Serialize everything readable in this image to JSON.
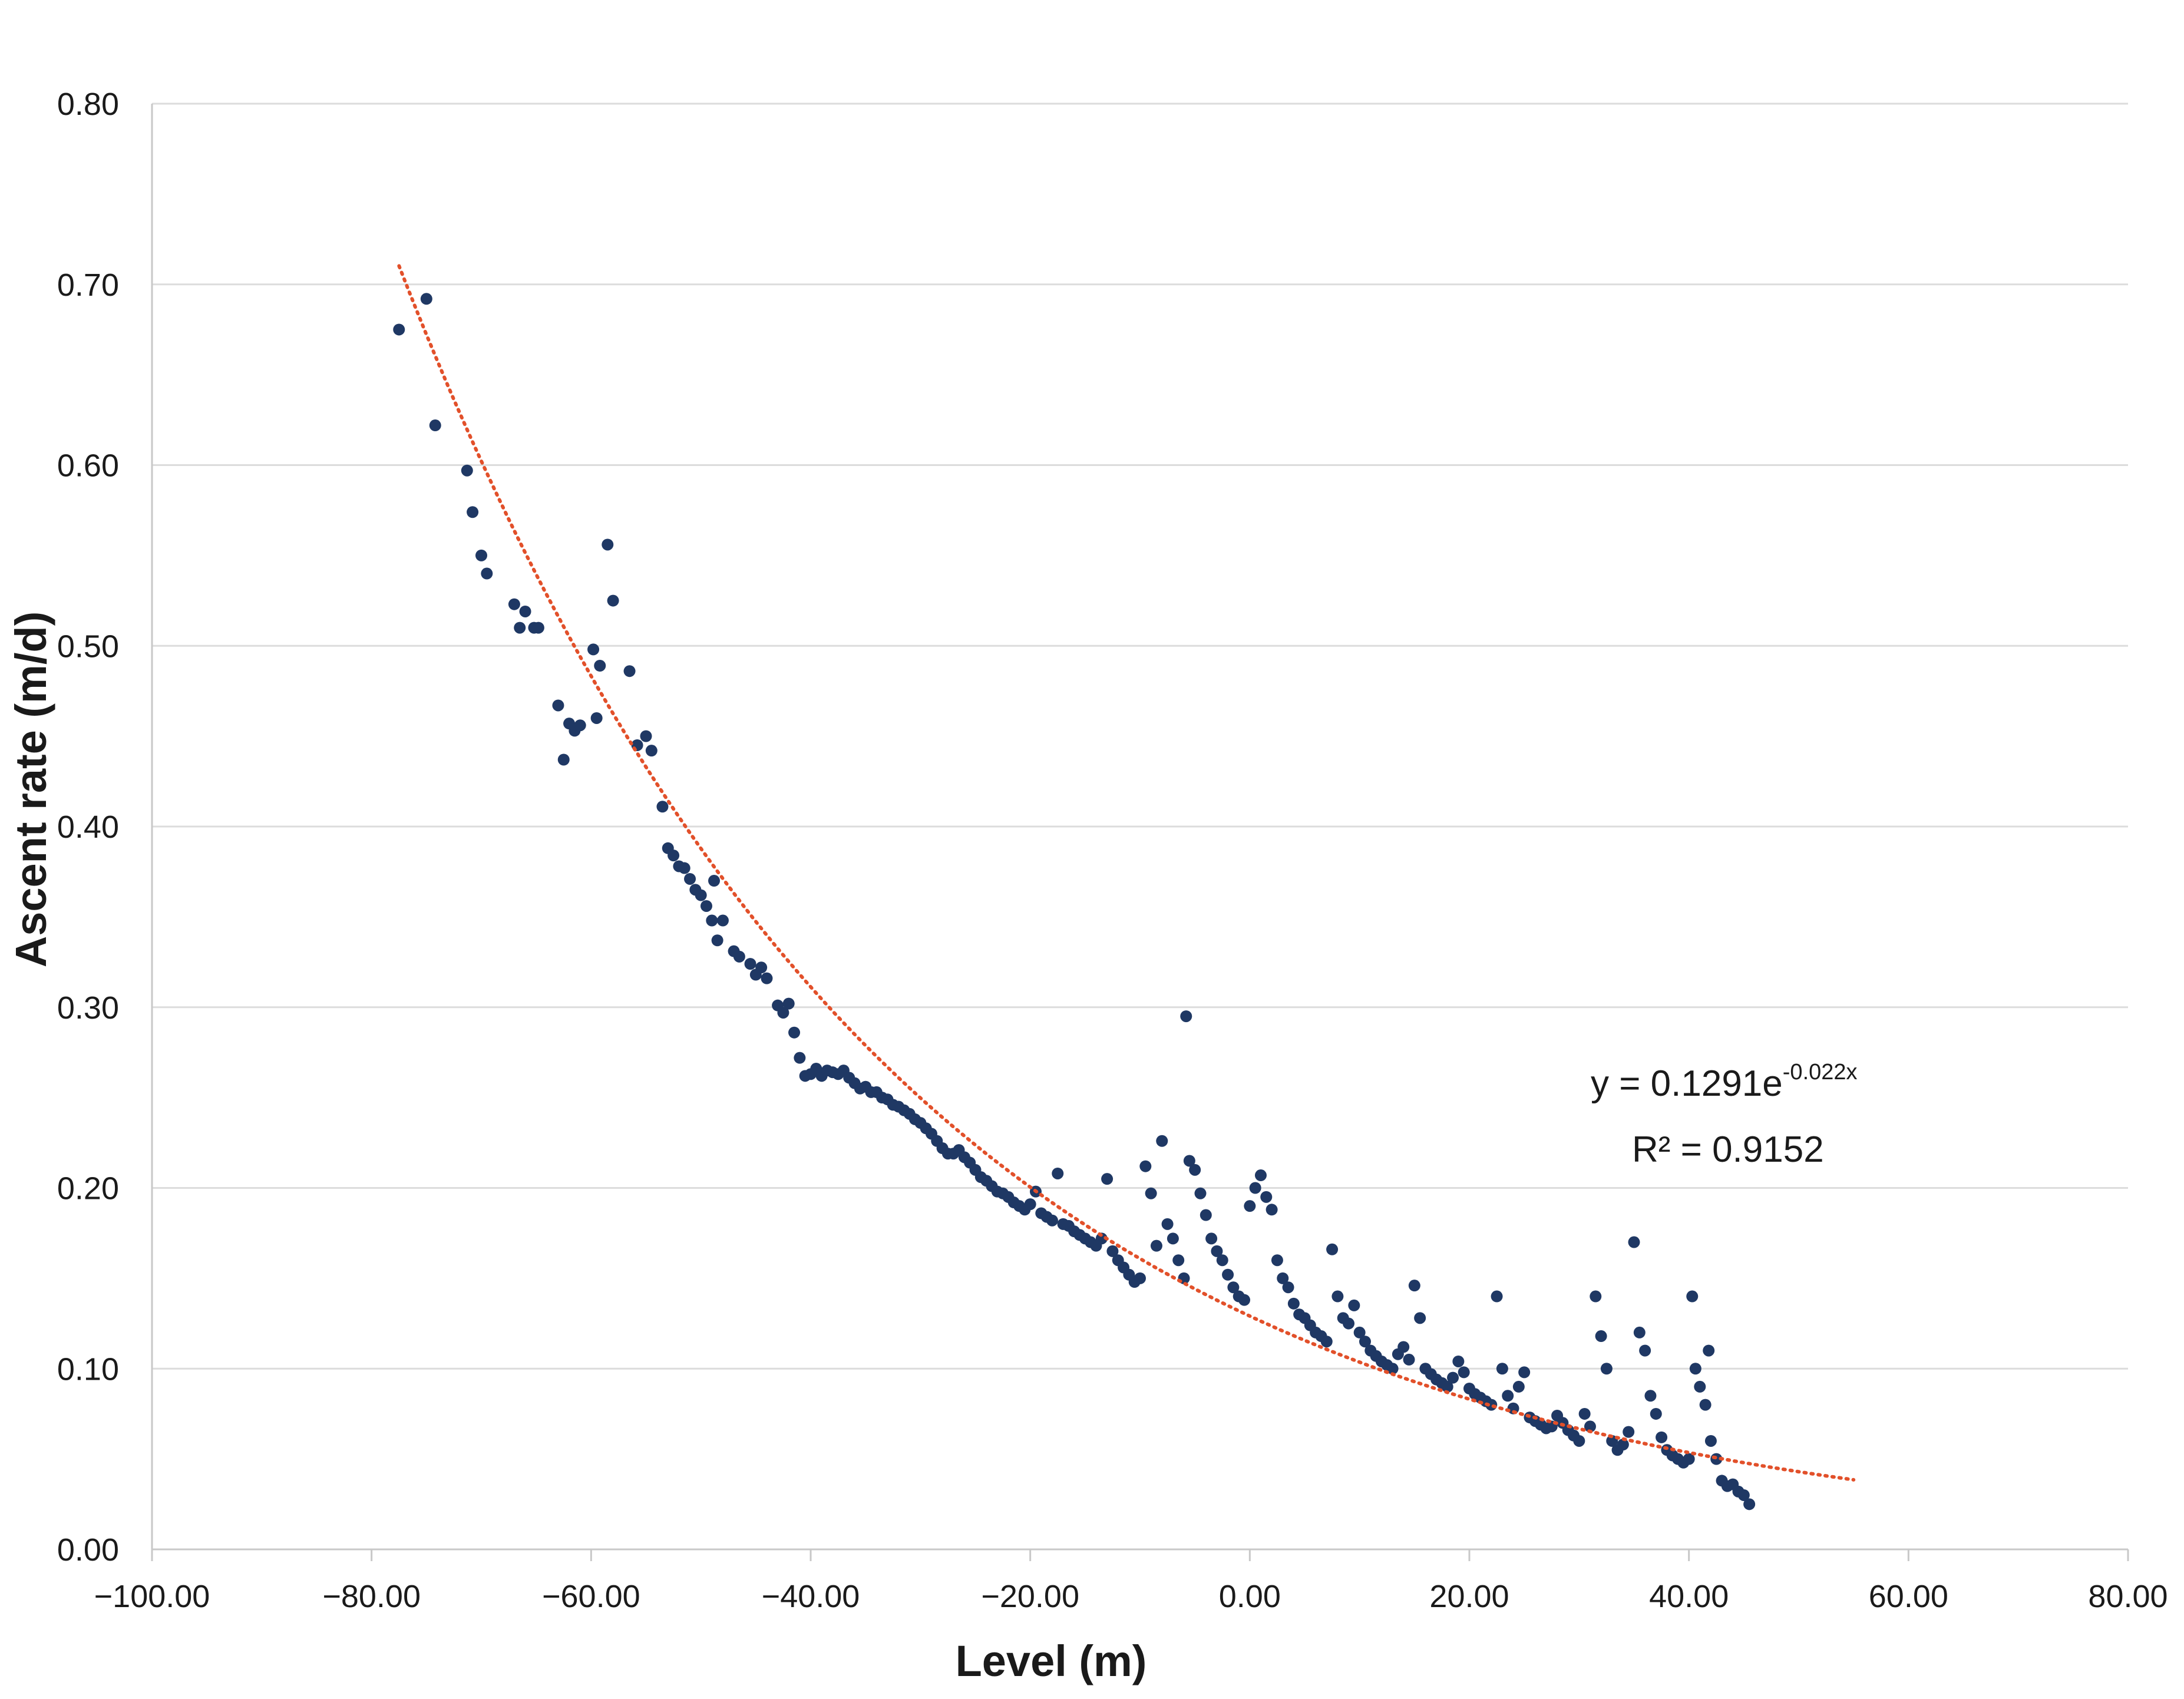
{
  "chart_data": {
    "type": "scatter",
    "title": "",
    "xlabel": "Level (m)",
    "ylabel": "Ascent rate (m/d)",
    "xlim": [
      -100,
      80
    ],
    "ylim": [
      0,
      0.8
    ],
    "grid": true,
    "legend": "none",
    "x_ticks": [
      -100,
      -80,
      -60,
      -40,
      -20,
      0,
      20,
      40,
      60,
      80
    ],
    "x_tick_labels": [
      "−100.00",
      "−80.00",
      "−60.00",
      "−40.00",
      "−20.00",
      "0.00",
      "20.00",
      "40.00",
      "60.00",
      "80.00"
    ],
    "y_ticks": [
      0,
      0.1,
      0.2,
      0.3,
      0.4,
      0.5,
      0.6,
      0.7,
      0.8
    ],
    "y_tick_labels": [
      "0.00",
      "0.10",
      "0.20",
      "0.30",
      "0.40",
      "0.50",
      "0.60",
      "0.70",
      "0.80"
    ],
    "point_color": "#1f3864",
    "trend_color": "#e2502a",
    "trendline": {
      "type": "exponential",
      "a": 0.1291,
      "b": -0.022,
      "x_range": [
        -77.5,
        55
      ]
    },
    "annotation": {
      "equation_base": "y = 0.1291e",
      "equation_exponent": "-0.022x",
      "r_squared": "R² = 0.9152"
    },
    "series": [
      {
        "name": "Ascent rate",
        "points": [
          [
            -77.5,
            0.675
          ],
          [
            -75.0,
            0.692
          ],
          [
            -74.2,
            0.622
          ],
          [
            -71.3,
            0.597
          ],
          [
            -70.8,
            0.574
          ],
          [
            -70.0,
            0.55
          ],
          [
            -69.5,
            0.54
          ],
          [
            -67.0,
            0.523
          ],
          [
            -66.5,
            0.51
          ],
          [
            -66.0,
            0.519
          ],
          [
            -65.2,
            0.51
          ],
          [
            -64.8,
            0.51
          ],
          [
            -63.0,
            0.467
          ],
          [
            -62.5,
            0.437
          ],
          [
            -62.0,
            0.457
          ],
          [
            -61.5,
            0.453
          ],
          [
            -61.0,
            0.456
          ],
          [
            -59.8,
            0.498
          ],
          [
            -59.5,
            0.46
          ],
          [
            -59.2,
            0.489
          ],
          [
            -58.5,
            0.556
          ],
          [
            -58.0,
            0.525
          ],
          [
            -56.5,
            0.486
          ],
          [
            -55.8,
            0.445
          ],
          [
            -55.0,
            0.45
          ],
          [
            -54.5,
            0.442
          ],
          [
            -53.5,
            0.411
          ],
          [
            -53.0,
            0.388
          ],
          [
            -52.5,
            0.384
          ],
          [
            -52.0,
            0.378
          ],
          [
            -51.5,
            0.377
          ],
          [
            -51.0,
            0.371
          ],
          [
            -50.5,
            0.365
          ],
          [
            -50.0,
            0.362
          ],
          [
            -49.5,
            0.356
          ],
          [
            -49.0,
            0.348
          ],
          [
            -48.8,
            0.37
          ],
          [
            -48.5,
            0.337
          ],
          [
            -48.0,
            0.348
          ],
          [
            -47.0,
            0.331
          ],
          [
            -46.5,
            0.328
          ],
          [
            -45.5,
            0.324
          ],
          [
            -45.0,
            0.318
          ],
          [
            -44.5,
            0.322
          ],
          [
            -44.0,
            0.316
          ],
          [
            -43.0,
            0.301
          ],
          [
            -42.5,
            0.297
          ],
          [
            -42.0,
            0.302
          ],
          [
            -41.5,
            0.286
          ],
          [
            -41.0,
            0.272
          ],
          [
            -40.5,
            0.262
          ],
          [
            -40.0,
            0.263
          ],
          [
            -39.5,
            0.266
          ],
          [
            -39.0,
            0.262
          ],
          [
            -38.5,
            0.265
          ],
          [
            -38.0,
            0.264
          ],
          [
            -37.5,
            0.263
          ],
          [
            -37.0,
            0.265
          ],
          [
            -36.5,
            0.261
          ],
          [
            -36.0,
            0.258
          ],
          [
            -35.5,
            0.255
          ],
          [
            -35.0,
            0.256
          ],
          [
            -34.5,
            0.253
          ],
          [
            -34.0,
            0.253
          ],
          [
            -33.5,
            0.25
          ],
          [
            -33.0,
            0.249
          ],
          [
            -32.5,
            0.246
          ],
          [
            -32.0,
            0.245
          ],
          [
            -31.5,
            0.243
          ],
          [
            -31.0,
            0.241
          ],
          [
            -30.5,
            0.238
          ],
          [
            -30.0,
            0.236
          ],
          [
            -29.5,
            0.233
          ],
          [
            -29.0,
            0.23
          ],
          [
            -28.5,
            0.226
          ],
          [
            -28.0,
            0.222
          ],
          [
            -27.5,
            0.219
          ],
          [
            -27.0,
            0.219
          ],
          [
            -26.5,
            0.221
          ],
          [
            -26.0,
            0.217
          ],
          [
            -25.5,
            0.214
          ],
          [
            -25.0,
            0.21
          ],
          [
            -24.5,
            0.206
          ],
          [
            -24.0,
            0.204
          ],
          [
            -23.5,
            0.201
          ],
          [
            -23.0,
            0.198
          ],
          [
            -22.5,
            0.197
          ],
          [
            -22.0,
            0.195
          ],
          [
            -21.5,
            0.192
          ],
          [
            -21.0,
            0.19
          ],
          [
            -20.5,
            0.188
          ],
          [
            -20.0,
            0.191
          ],
          [
            -19.5,
            0.198
          ],
          [
            -19.0,
            0.186
          ],
          [
            -18.5,
            0.184
          ],
          [
            -18.0,
            0.182
          ],
          [
            -17.5,
            0.208
          ],
          [
            -17.0,
            0.18
          ],
          [
            -16.5,
            0.179
          ],
          [
            -16.0,
            0.176
          ],
          [
            -15.5,
            0.174
          ],
          [
            -15.0,
            0.172
          ],
          [
            -14.5,
            0.17
          ],
          [
            -14.0,
            0.168
          ],
          [
            -13.5,
            0.172
          ],
          [
            -13.0,
            0.205
          ],
          [
            -12.5,
            0.165
          ],
          [
            -12.0,
            0.16
          ],
          [
            -11.5,
            0.156
          ],
          [
            -11.0,
            0.152
          ],
          [
            -10.5,
            0.148
          ],
          [
            -10.0,
            0.15
          ],
          [
            -9.5,
            0.212
          ],
          [
            -9.0,
            0.197
          ],
          [
            -8.5,
            0.168
          ],
          [
            -8.0,
            0.226
          ],
          [
            -7.5,
            0.18
          ],
          [
            -7.0,
            0.172
          ],
          [
            -6.5,
            0.16
          ],
          [
            -6.0,
            0.15
          ],
          [
            -5.8,
            0.295
          ],
          [
            -5.5,
            0.215
          ],
          [
            -5.0,
            0.21
          ],
          [
            -4.5,
            0.197
          ],
          [
            -4.0,
            0.185
          ],
          [
            -3.5,
            0.172
          ],
          [
            -3.0,
            0.165
          ],
          [
            -2.5,
            0.16
          ],
          [
            -2.0,
            0.152
          ],
          [
            -1.5,
            0.145
          ],
          [
            -1.0,
            0.14
          ],
          [
            -0.5,
            0.138
          ],
          [
            0.0,
            0.19
          ],
          [
            0.5,
            0.2
          ],
          [
            1.0,
            0.207
          ],
          [
            1.5,
            0.195
          ],
          [
            2.0,
            0.188
          ],
          [
            2.5,
            0.16
          ],
          [
            3.0,
            0.15
          ],
          [
            3.5,
            0.145
          ],
          [
            4.0,
            0.136
          ],
          [
            4.5,
            0.13
          ],
          [
            5.0,
            0.128
          ],
          [
            5.5,
            0.124
          ],
          [
            6.0,
            0.12
          ],
          [
            6.5,
            0.118
          ],
          [
            7.0,
            0.115
          ],
          [
            7.5,
            0.166
          ],
          [
            8.0,
            0.14
          ],
          [
            8.5,
            0.128
          ],
          [
            9.0,
            0.125
          ],
          [
            9.5,
            0.135
          ],
          [
            10.0,
            0.12
          ],
          [
            10.5,
            0.115
          ],
          [
            11.0,
            0.11
          ],
          [
            11.5,
            0.107
          ],
          [
            12.0,
            0.104
          ],
          [
            12.5,
            0.102
          ],
          [
            13.0,
            0.1
          ],
          [
            13.5,
            0.108
          ],
          [
            14.0,
            0.112
          ],
          [
            14.5,
            0.105
          ],
          [
            15.0,
            0.146
          ],
          [
            15.5,
            0.128
          ],
          [
            16.0,
            0.1
          ],
          [
            16.5,
            0.097
          ],
          [
            17.0,
            0.094
          ],
          [
            17.5,
            0.092
          ],
          [
            18.0,
            0.09
          ],
          [
            18.5,
            0.095
          ],
          [
            19.0,
            0.104
          ],
          [
            19.5,
            0.098
          ],
          [
            20.0,
            0.089
          ],
          [
            20.5,
            0.086
          ],
          [
            21.0,
            0.084
          ],
          [
            21.5,
            0.082
          ],
          [
            22.0,
            0.08
          ],
          [
            22.5,
            0.14
          ],
          [
            23.0,
            0.1
          ],
          [
            23.5,
            0.085
          ],
          [
            24.0,
            0.078
          ],
          [
            24.5,
            0.09
          ],
          [
            25.0,
            0.098
          ],
          [
            25.5,
            0.073
          ],
          [
            26.0,
            0.071
          ],
          [
            26.5,
            0.069
          ],
          [
            27.0,
            0.067
          ],
          [
            27.5,
            0.068
          ],
          [
            28.0,
            0.074
          ],
          [
            28.5,
            0.07
          ],
          [
            29.0,
            0.066
          ],
          [
            29.5,
            0.063
          ],
          [
            30.0,
            0.06
          ],
          [
            30.5,
            0.075
          ],
          [
            31.0,
            0.068
          ],
          [
            31.5,
            0.14
          ],
          [
            32.0,
            0.118
          ],
          [
            32.5,
            0.1
          ],
          [
            33.0,
            0.06
          ],
          [
            33.5,
            0.055
          ],
          [
            34.0,
            0.058
          ],
          [
            34.5,
            0.065
          ],
          [
            35.0,
            0.17
          ],
          [
            35.5,
            0.12
          ],
          [
            36.0,
            0.11
          ],
          [
            36.5,
            0.085
          ],
          [
            37.0,
            0.075
          ],
          [
            37.5,
            0.062
          ],
          [
            38.0,
            0.055
          ],
          [
            38.5,
            0.052
          ],
          [
            39.0,
            0.05
          ],
          [
            39.5,
            0.048
          ],
          [
            40.0,
            0.05
          ],
          [
            40.3,
            0.14
          ],
          [
            40.6,
            0.1
          ],
          [
            41.0,
            0.09
          ],
          [
            41.5,
            0.08
          ],
          [
            41.8,
            0.11
          ],
          [
            42.0,
            0.06
          ],
          [
            42.5,
            0.05
          ],
          [
            43.0,
            0.038
          ],
          [
            43.5,
            0.035
          ],
          [
            44.0,
            0.036
          ],
          [
            44.5,
            0.032
          ],
          [
            45.0,
            0.03
          ],
          [
            45.5,
            0.025
          ]
        ]
      }
    ]
  }
}
